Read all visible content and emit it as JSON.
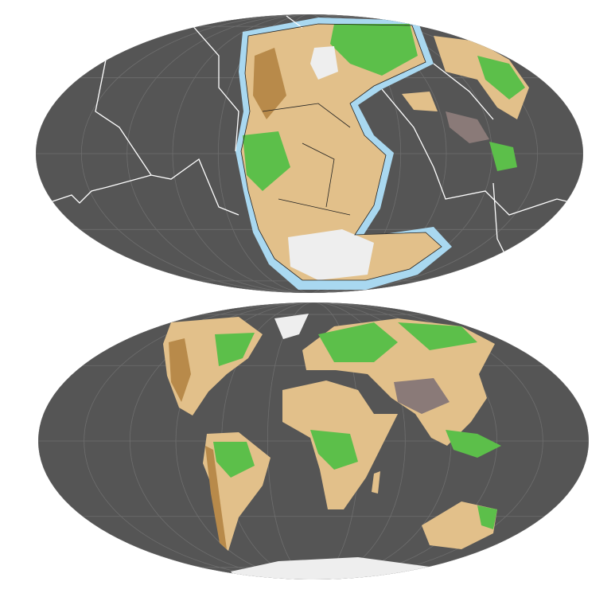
{
  "maps": [
    {
      "id": "paleo-reconstruction",
      "projection": "mollweide",
      "shows_plate_boundaries": true
    },
    {
      "id": "present-day",
      "projection": "mollweide",
      "shows_plate_boundaries": false
    }
  ],
  "colors": {
    "ocean": "#555555",
    "graticule": "#6e6e6e",
    "lowland": "#e2c08a",
    "highland": "#b88a4a",
    "vegetation": "#5cbf4a",
    "ice": "#eeeeee",
    "shelf": "#a9d8f0",
    "plate_boundary": "#ffffff",
    "coastline": "#222222",
    "plateau": "#8a7a78"
  }
}
